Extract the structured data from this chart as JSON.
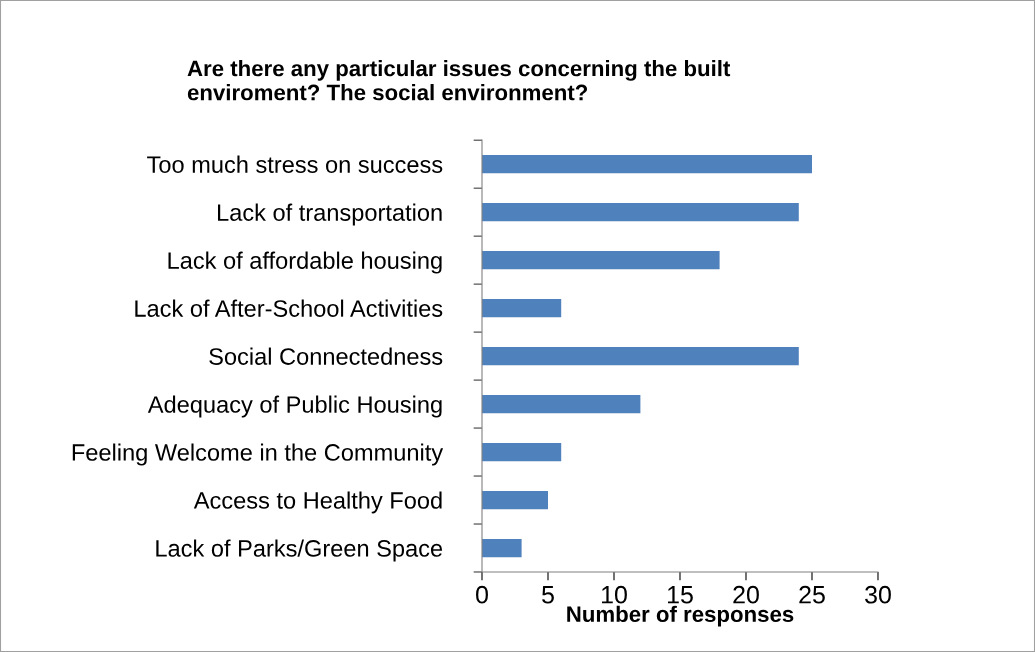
{
  "chart_data": {
    "type": "bar",
    "orientation": "horizontal",
    "title": "Are there any particular issues concerning the built\nenviroment? The social environment?",
    "xlabel": "Number of responses",
    "categories": [
      "Too much stress on success",
      "Lack of transportation",
      "Lack of affordable housing",
      "Lack of After-School Activities",
      "Social Connectedness",
      "Adequacy of Public Housing",
      "Feeling Welcome in the Community",
      "Access to Healthy Food",
      "Lack of Parks/Green Space"
    ],
    "values": [
      25,
      24,
      18,
      6,
      24,
      12,
      6,
      5,
      3
    ],
    "color": "#4f81bd",
    "xlim": [
      0,
      30
    ],
    "xticks": [
      0,
      5,
      10,
      15,
      20,
      25,
      30
    ],
    "grid": false,
    "legend": false
  }
}
